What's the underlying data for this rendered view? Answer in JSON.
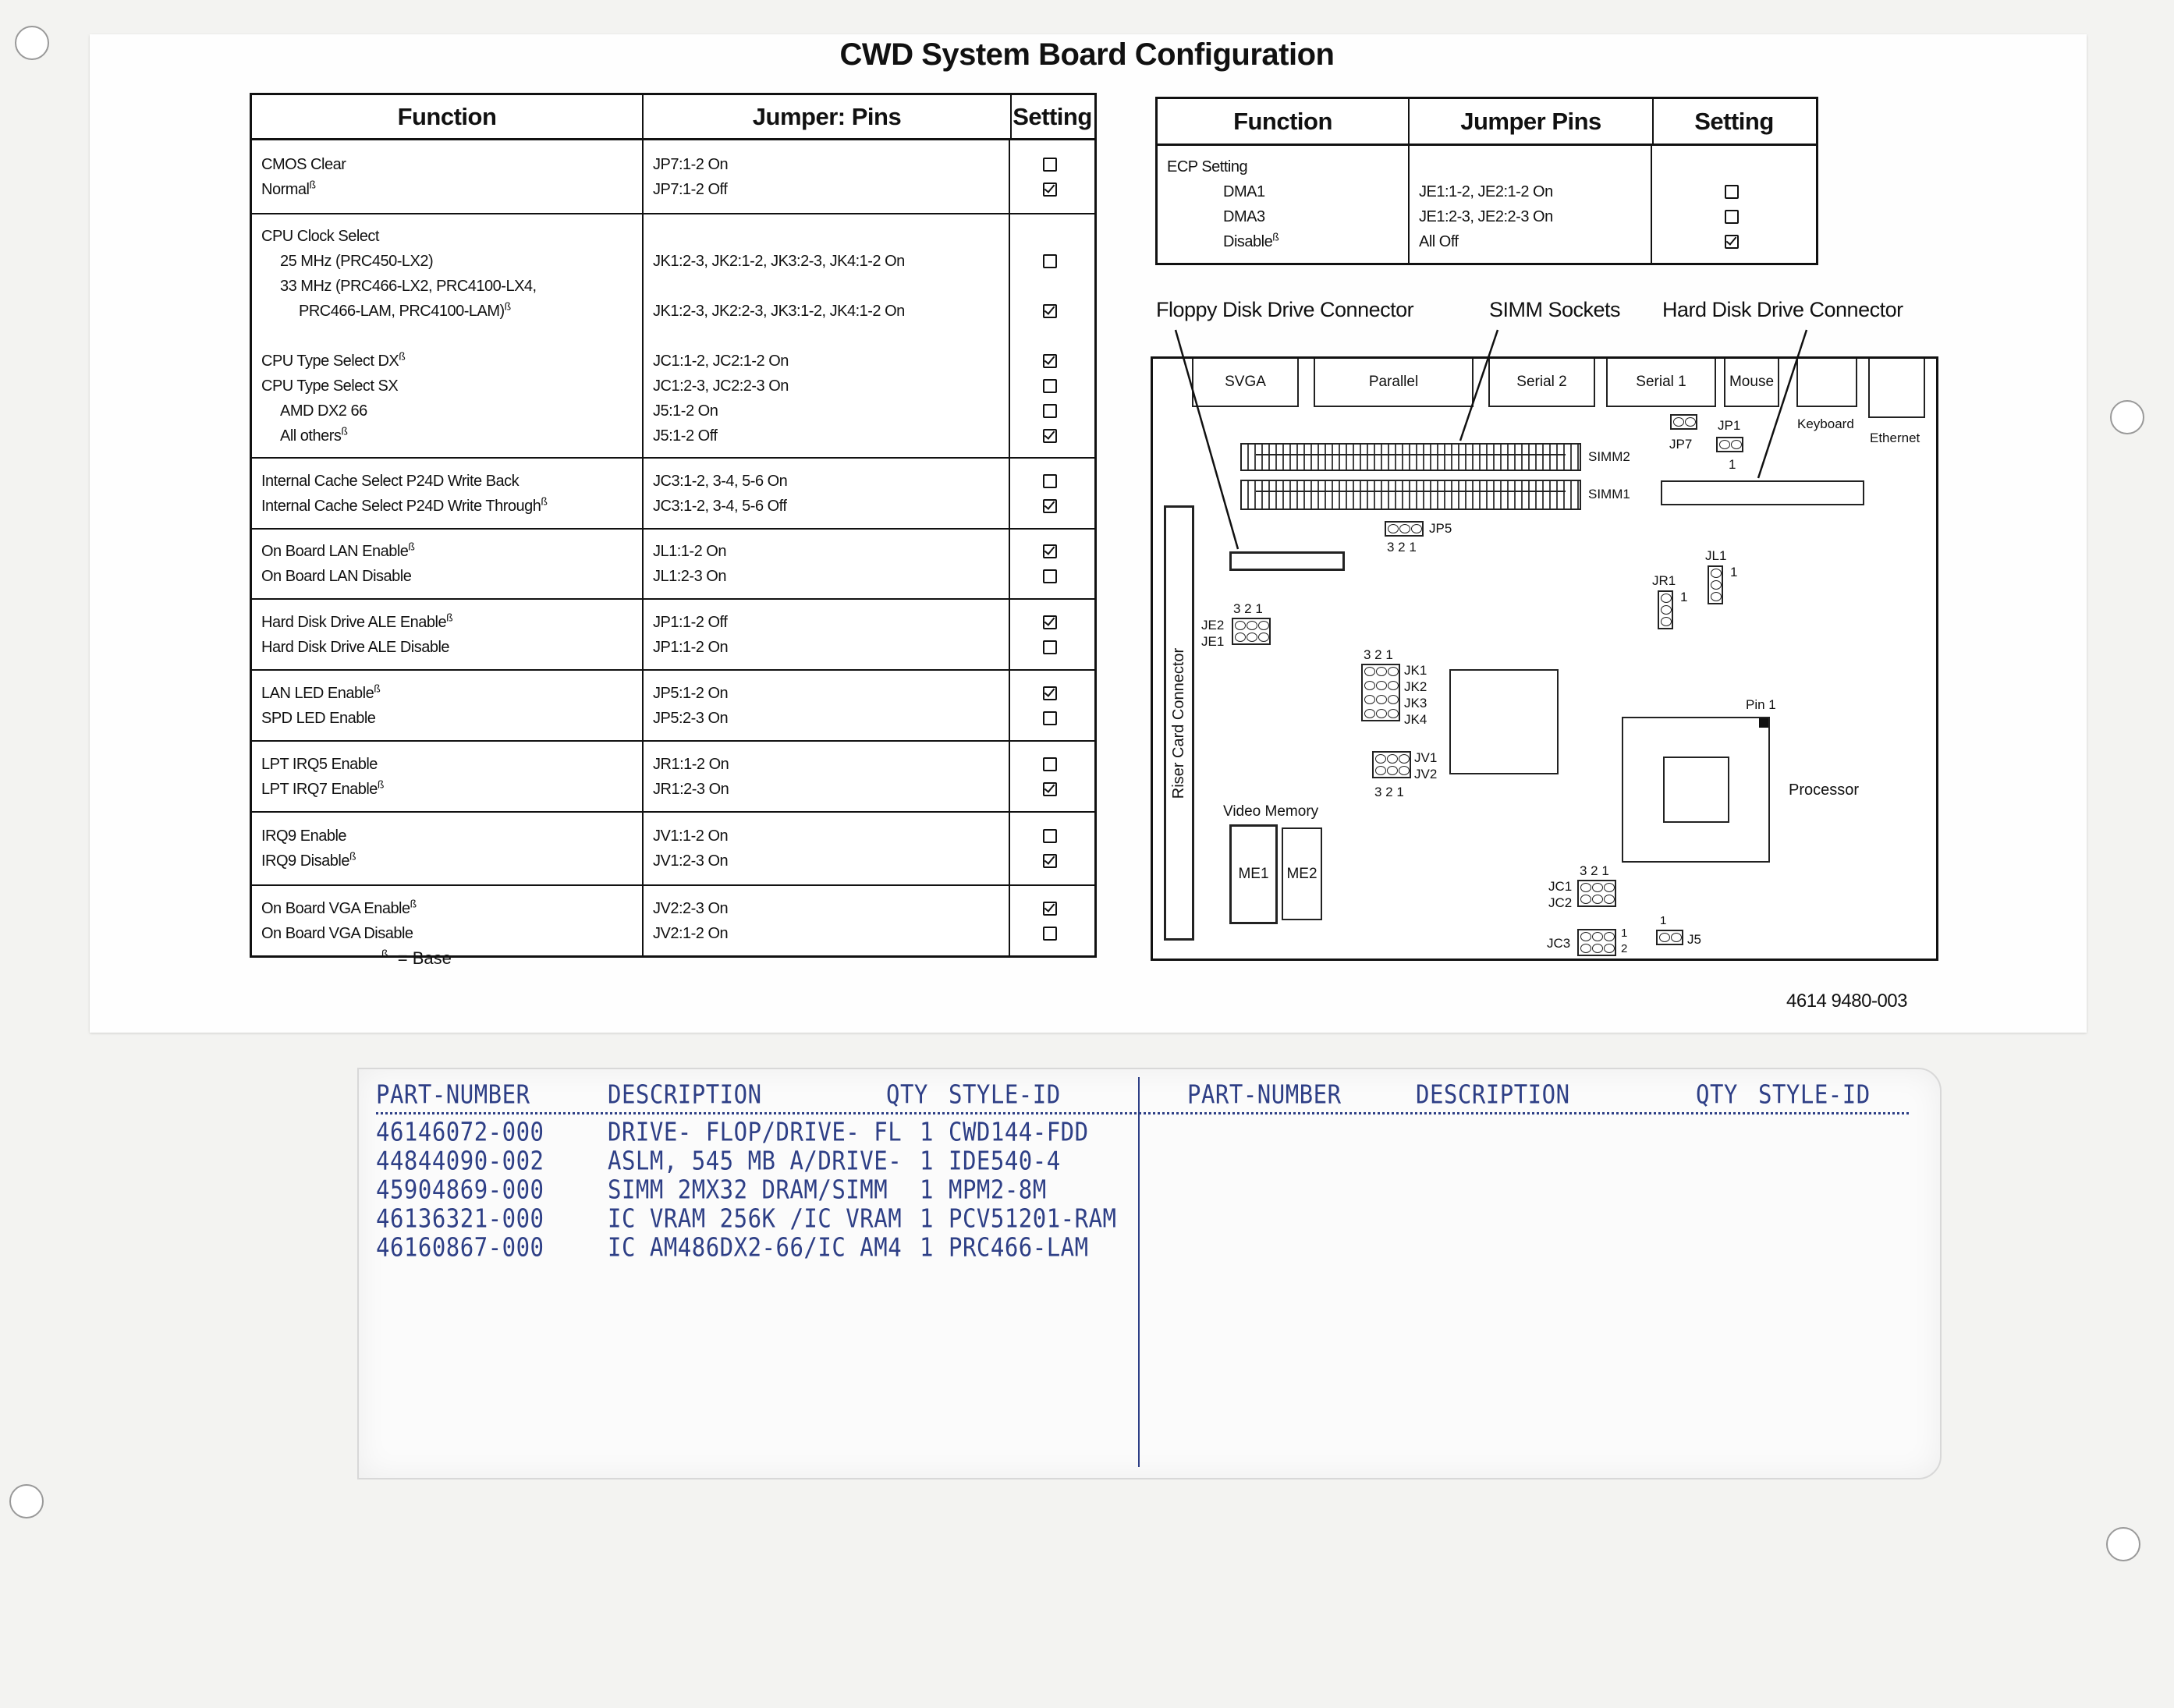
{
  "title": "CWD System Board Configuration",
  "base_marker": "ß",
  "base_note": "= Base",
  "left_table": {
    "headers": [
      "Function",
      "Jumper: Pins",
      "Setting"
    ],
    "rows": [
      {
        "lines": [
          {
            "func": "CMOS Clear",
            "pins": "JP7:1-2 On",
            "checked": false
          },
          {
            "func": "Normal",
            "base": true,
            "pins": "JP7:1-2 Off",
            "checked": true
          }
        ]
      },
      {
        "lines": [
          {
            "func": "CPU Clock Select",
            "pins": "",
            "checked": null
          },
          {
            "func": "25 MHz (PRC450-LX2)",
            "indent": 1,
            "pins": "JK1:2-3, JK2:1-2, JK3:2-3, JK4:1-2 On",
            "checked": false
          },
          {
            "func": "33 MHz (PRC466-LX2, PRC4100-LX4,",
            "indent": 1,
            "pins": "",
            "checked": null
          },
          {
            "func": "PRC466-LAM, PRC4100-LAM)",
            "indent": 2,
            "base": true,
            "pins": "JK1:2-3, JK2:2-3, JK3:1-2, JK4:1-2 On",
            "checked": true
          },
          {
            "func": "",
            "pins": "",
            "checked": null
          },
          {
            "func": "CPU Type Select DX",
            "base": true,
            "pins": "JC1:1-2, JC2:1-2 On",
            "checked": true
          },
          {
            "func": "CPU Type Select SX",
            "pins": "JC1:2-3, JC2:2-3 On",
            "checked": false
          },
          {
            "func": "AMD DX2 66",
            "indent": 1,
            "pins": "J5:1-2 On",
            "checked": false
          },
          {
            "func": "All others",
            "indent": 1,
            "base": true,
            "pins": "J5:1-2 Off",
            "checked": true
          }
        ]
      },
      {
        "lines": [
          {
            "func": "Internal Cache Select P24D Write Back",
            "pins": "JC3:1-2, 3-4, 5-6 On",
            "checked": false
          },
          {
            "func": "Internal Cache Select P24D Write Through",
            "base": true,
            "pins": "JC3:1-2, 3-4, 5-6 Off",
            "checked": true
          }
        ]
      },
      {
        "lines": [
          {
            "func": "On Board LAN Enable",
            "base": true,
            "pins": "JL1:1-2 On",
            "checked": true
          },
          {
            "func": "On Board LAN Disable",
            "pins": "JL1:2-3 On",
            "checked": false
          }
        ]
      },
      {
        "lines": [
          {
            "func": "Hard Disk Drive ALE Enable",
            "base": true,
            "pins": "JP1:1-2 Off",
            "checked": true
          },
          {
            "func": "Hard Disk Drive ALE Disable",
            "pins": "JP1:1-2 On",
            "checked": false
          }
        ]
      },
      {
        "lines": [
          {
            "func": "LAN LED Enable",
            "base": true,
            "pins": "JP5:1-2 On",
            "checked": true
          },
          {
            "func": "SPD LED Enable",
            "pins": "JP5:2-3 On",
            "checked": false
          }
        ]
      },
      {
        "lines": [
          {
            "func": "LPT IRQ5 Enable",
            "pins": "JR1:1-2 On",
            "checked": false
          },
          {
            "func": "LPT IRQ7 Enable",
            "base": true,
            "pins": "JR1:2-3 On",
            "checked": true
          }
        ]
      },
      {
        "lines": [
          {
            "func": "IRQ9 Enable",
            "pins": "JV1:1-2 On",
            "checked": false
          },
          {
            "func": "IRQ9 Disable",
            "base": true,
            "pins": "JV1:2-3 On",
            "checked": true
          }
        ]
      },
      {
        "lines": [
          {
            "func": "On Board VGA Enable",
            "base": true,
            "pins": "JV2:2-3 On",
            "checked": true
          },
          {
            "func": "On Board VGA Disable",
            "pins": "JV2:1-2 On",
            "checked": false
          }
        ]
      }
    ]
  },
  "right_table": {
    "headers": [
      "Function",
      "Jumper Pins",
      "Setting"
    ],
    "rows": [
      {
        "lines": [
          {
            "func": "ECP Setting",
            "pins": "",
            "checked": null
          },
          {
            "func": "DMA1",
            "indent": 3,
            "pins": "JE1:1-2, JE2:1-2 On",
            "checked": false
          },
          {
            "func": "DMA3",
            "indent": 3,
            "pins": "JE1:2-3, JE2:2-3 On",
            "checked": false
          },
          {
            "func": "Disable",
            "indent": 3,
            "base": true,
            "pins": "All Off",
            "checked": true
          }
        ]
      }
    ]
  },
  "callouts": {
    "floppy": "Floppy Disk Drive Connector",
    "simm": "SIMM Sockets",
    "hdd": "Hard Disk Drive Connector"
  },
  "board": {
    "ports": [
      "SVGA",
      "Parallel",
      "Serial 2",
      "Serial 1",
      "Mouse"
    ],
    "keyboard": "Keyboard",
    "ethernet": "Ethernet",
    "jp7": "JP7",
    "jp1": "JP1",
    "jp5": "JP5",
    "simm1": "SIMM1",
    "simm2": "SIMM2",
    "pin_order": "3 2 1",
    "one": "1",
    "two": "2",
    "je2": "JE2",
    "je1": "JE1",
    "jk": [
      "JK1",
      "JK2",
      "JK3",
      "JK4"
    ],
    "jv": [
      "JV1",
      "JV2"
    ],
    "jr1": "JR1",
    "jl1": "JL1",
    "jc": [
      "JC1",
      "JC2"
    ],
    "jc3": "JC3",
    "j5": "J5",
    "riser": "Riser Card Connector",
    "video_memory": "Video Memory",
    "me1": "ME1",
    "me2": "ME2",
    "pin1": "Pin 1",
    "processor": "Processor"
  },
  "document_number": "4614 9480-003",
  "parts_label": {
    "headers": [
      "PART-NUMBER",
      "DESCRIPTION",
      "QTY",
      "STYLE-ID"
    ],
    "rows": [
      [
        "46146072-000",
        "DRIVE- FLOP/DRIVE- FL",
        "1",
        "CWD144-FDD"
      ],
      [
        "44844090-002",
        "ASLM, 545 MB A/DRIVE-",
        "1",
        "IDE540-4"
      ],
      [
        "45904869-000",
        "SIMM 2MX32 DRAM/SIMM",
        "1",
        "MPM2-8M"
      ],
      [
        "46136321-000",
        "IC VRAM 256K /IC VRAM",
        "1",
        "PCV51201-RAM"
      ],
      [
        "46160867-000",
        "IC AM486DX2-66/IC AM4",
        "1",
        "PRC466-LAM"
      ]
    ],
    "text_color": "#2e3f86"
  }
}
